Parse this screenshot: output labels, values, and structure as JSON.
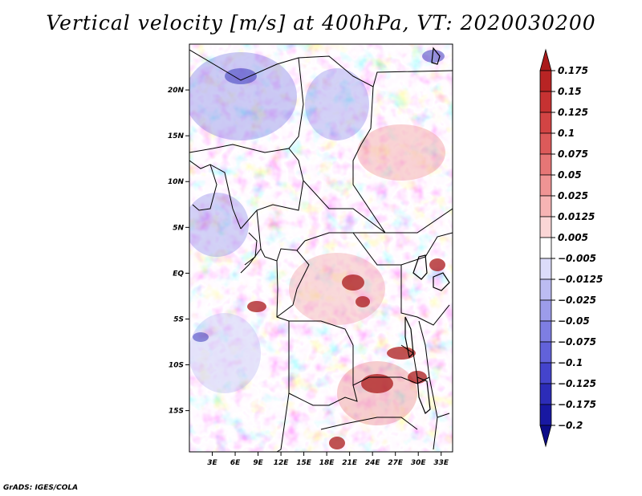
{
  "title": "Vertical velocity [m/s] at 400hPa, VT: 2020030200",
  "credit": "GrADS: IGES/COLA",
  "map": {
    "lat_labels": [
      "20N",
      "15N",
      "10N",
      "5N",
      "EQ",
      "5S",
      "10S",
      "15S"
    ],
    "lat_values": [
      20,
      15,
      10,
      5,
      0,
      -5,
      -10,
      -15
    ],
    "lon_labels": [
      "3E",
      "6E",
      "9E",
      "12E",
      "15E",
      "18E",
      "21E",
      "24E",
      "27E",
      "30E",
      "33E"
    ],
    "lon_values": [
      3,
      6,
      9,
      12,
      15,
      18,
      21,
      24,
      27,
      30,
      33
    ],
    "lon_range": [
      0,
      34.5
    ],
    "lat_range": [
      -19.5,
      25
    ]
  },
  "colorbar": {
    "labels": [
      "0.175",
      "0.15",
      "0.125",
      "0.1",
      "0.075",
      "0.05",
      "0.025",
      "0.0125",
      "0.005",
      "−0.005",
      "−0.0125",
      "−0.025",
      "−0.05",
      "−0.075",
      "−0.1",
      "−0.125",
      "−0.175",
      "−0.2"
    ],
    "colors": [
      "#aa1a1a",
      "#b82424",
      "#c63232",
      "#d24444",
      "#dc5a5a",
      "#e67676",
      "#ef9494",
      "#f6b4b4",
      "#fbd6d6",
      "#ffffff",
      "#dcdcfa",
      "#bcbcf2",
      "#9c9cea",
      "#7e7ee2",
      "#6262da",
      "#4444cc",
      "#2c2cb8",
      "#1818a2",
      "#0c0c88"
    ]
  }
}
